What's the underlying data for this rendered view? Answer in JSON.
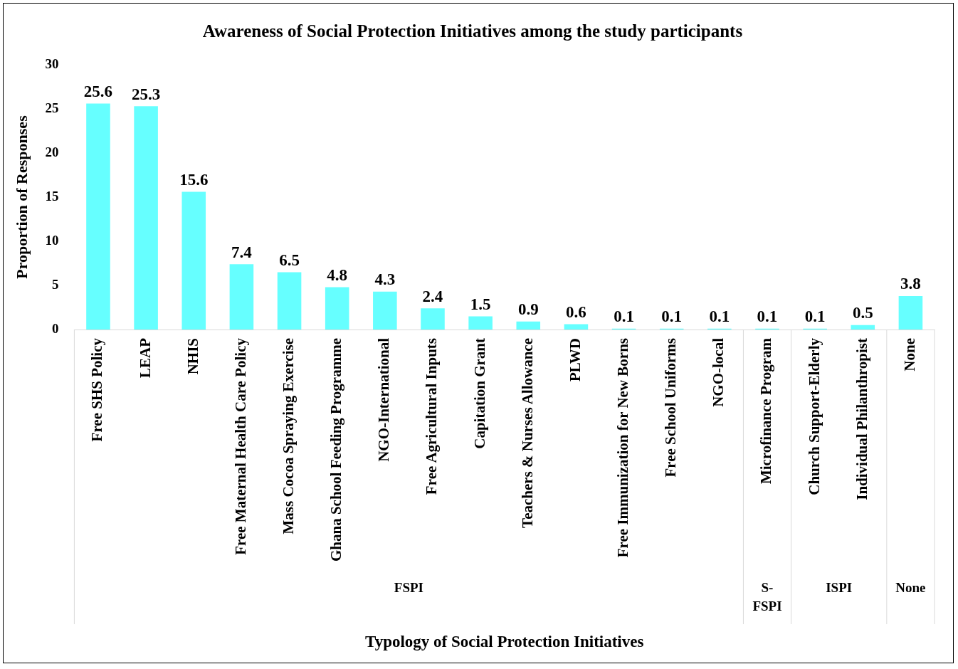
{
  "chart_data": {
    "type": "bar",
    "title": "Awareness of Social Protection Initiatives among the study participants",
    "xlabel": "Typology of Social Protection Initiatives",
    "ylabel": "Proportion of Responses",
    "categories": [
      "Free SHS Policy",
      "LEAP",
      "NHIS",
      "Free Maternal Health Care Policy",
      "Mass Cocoa Spraying Exercise",
      "Ghana School Feeding Programme",
      "NGO-International",
      "Free Agricultural Inputs",
      "Capitation Grant",
      "Teachers & Nurses Allowance",
      "PLWD",
      "Free Immunization for New Borns",
      "Free School Uniforms",
      "NGO-local",
      "Microfinance Program",
      "Church Support-Elderly",
      "Individual Philanthropist",
      "None"
    ],
    "values": [
      25.6,
      25.3,
      15.6,
      7.4,
      6.5,
      4.8,
      4.3,
      2.4,
      1.5,
      0.9,
      0.6,
      0.1,
      0.1,
      0.1,
      0.1,
      0.1,
      0.5,
      3.8
    ],
    "color": "#66ffff",
    "ylim": [
      0,
      30
    ],
    "yticks": [
      0,
      5,
      10,
      15,
      20,
      25,
      30
    ],
    "grid": false,
    "legend": false,
    "data_labels": true,
    "annotations": [
      "FSPI",
      "S-\nFSPI",
      "ISPI",
      "None"
    ]
  }
}
